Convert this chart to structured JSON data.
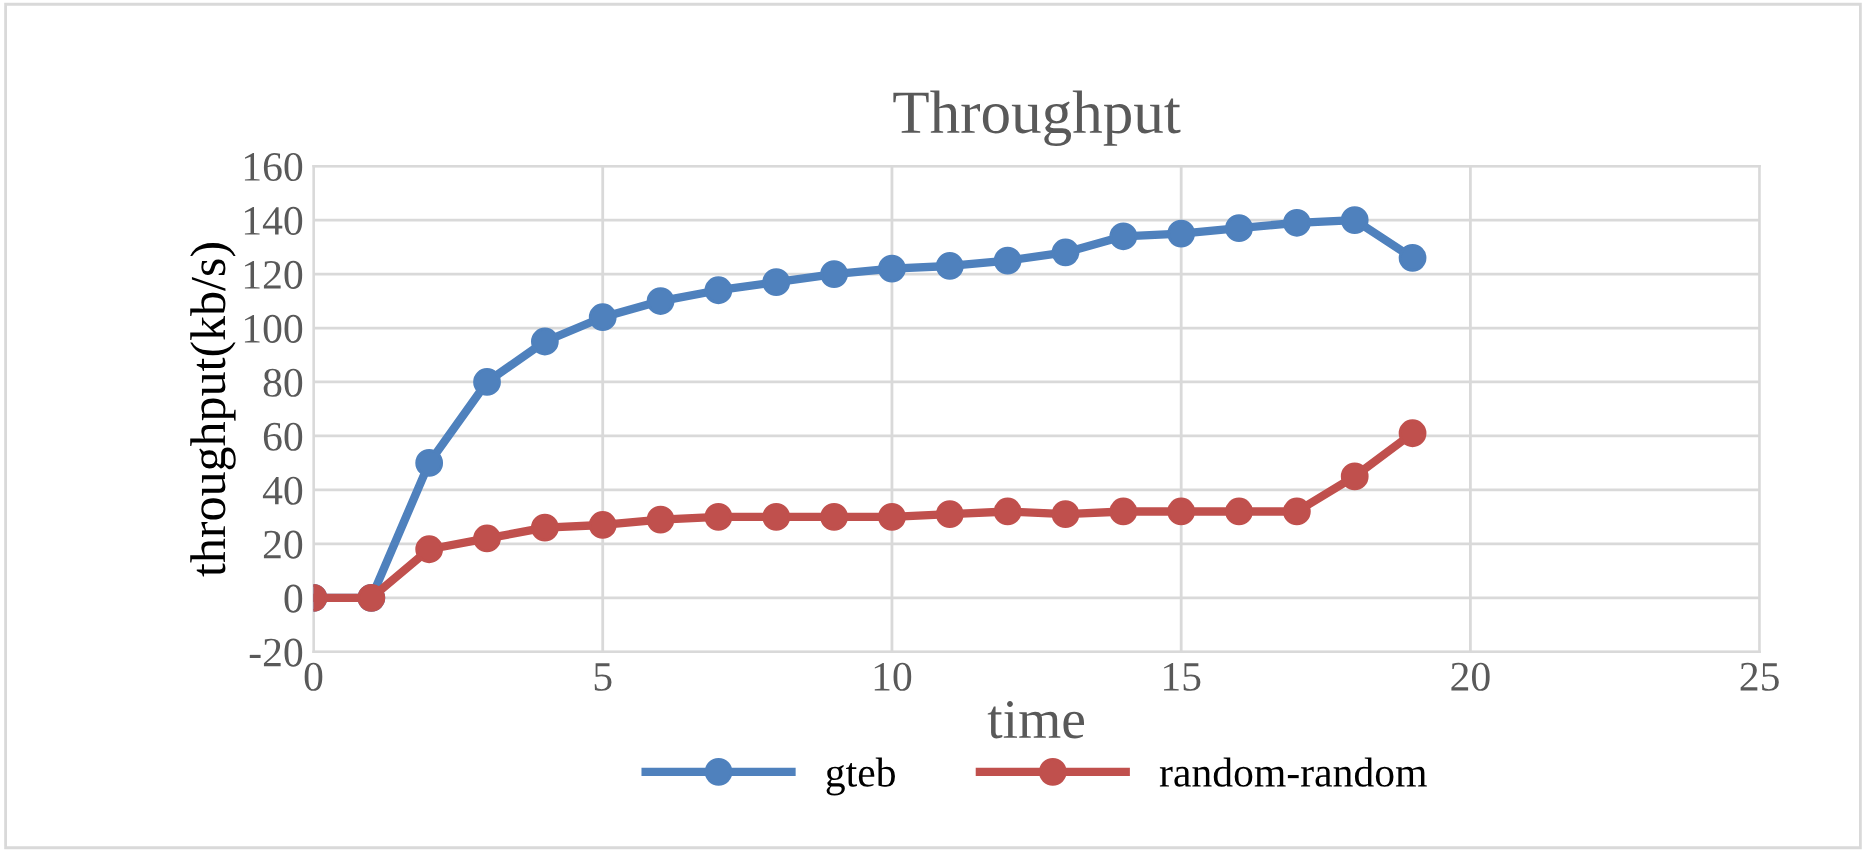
{
  "chart_data": {
    "type": "line",
    "title": "Throughput",
    "xlabel": "time",
    "ylabel": "throughput(kb/s)",
    "x": [
      0,
      1,
      2,
      3,
      4,
      5,
      6,
      7,
      8,
      9,
      10,
      11,
      12,
      13,
      14,
      15,
      16,
      17,
      18,
      19
    ],
    "series": [
      {
        "name": "gteb",
        "color": "#4f81bd",
        "values": [
          0,
          0,
          50,
          80,
          95,
          104,
          110,
          114,
          117,
          120,
          122,
          123,
          125,
          128,
          134,
          135,
          137,
          139,
          140,
          126
        ]
      },
      {
        "name": "random-random",
        "color": "#c0504d",
        "values": [
          0,
          0,
          18,
          22,
          26,
          27,
          29,
          30,
          30,
          30,
          30,
          31,
          32,
          31,
          32,
          32,
          32,
          32,
          45,
          61
        ]
      }
    ],
    "xlim": [
      0,
      25
    ],
    "xticks": [
      0,
      5,
      10,
      15,
      20,
      25
    ],
    "ylim": [
      -20,
      160
    ],
    "yticks": [
      -20,
      0,
      20,
      40,
      60,
      80,
      100,
      120,
      140,
      160
    ],
    "grid": true,
    "legend": "bottom",
    "marker": "circle",
    "line_style": "solid"
  }
}
